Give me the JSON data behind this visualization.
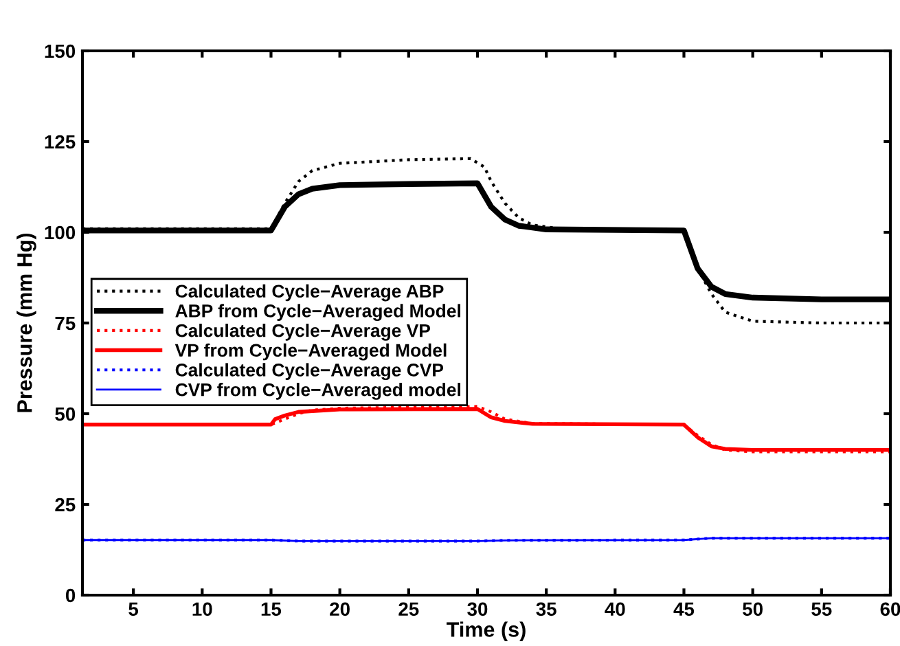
{
  "chart_data": {
    "type": "line",
    "xlabel": "Time (s)",
    "ylabel": "Pressure (mm Hg)",
    "xlim": [
      1.3,
      60
    ],
    "ylim": [
      0,
      150
    ],
    "xticks": [
      5,
      10,
      15,
      20,
      25,
      30,
      35,
      40,
      45,
      50,
      55,
      60
    ],
    "yticks": [
      0,
      25,
      50,
      75,
      100,
      125,
      150
    ],
    "grid": false,
    "legend": "left",
    "series": [
      {
        "name": "Calculated Cycle−Average ABP",
        "color": "#000000",
        "line_style": "dotted",
        "x": [
          1.3,
          15,
          16,
          17,
          18,
          20,
          25,
          29.5,
          30.5,
          31,
          32,
          33,
          34,
          36,
          45,
          46,
          47,
          48,
          50,
          55,
          60
        ],
        "values": [
          101,
          101,
          108,
          114,
          117,
          119,
          120,
          120.3,
          118,
          114,
          108,
          104,
          102,
          101,
          100.5,
          90,
          83,
          78,
          75.5,
          75,
          75
        ]
      },
      {
        "name": "ABP from Cycle−Averaged Model",
        "color": "#000000",
        "line_style": "solid",
        "x": [
          1.3,
          15,
          16,
          17,
          18,
          20,
          25,
          30,
          31,
          32,
          33,
          35,
          45,
          46,
          47,
          48,
          50,
          55,
          60
        ],
        "values": [
          100.5,
          100.5,
          107,
          110.5,
          112,
          113,
          113.3,
          113.5,
          107,
          103.5,
          101.8,
          100.8,
          100.5,
          90,
          85,
          83,
          82,
          81.5,
          81.5
        ]
      },
      {
        "name": "Calculated Cycle−Average VP",
        "color": "#ff0000",
        "line_style": "dotted",
        "x": [
          1.3,
          15,
          16,
          17,
          18,
          20,
          30,
          31,
          32,
          34,
          45,
          46,
          47,
          48,
          50,
          60
        ],
        "values": [
          47,
          47,
          48.5,
          50,
          51,
          51.5,
          52,
          50.5,
          48.5,
          47.3,
          47,
          44,
          41.5,
          40,
          39.5,
          39.5
        ]
      },
      {
        "name": "VP from Cycle−Averaged Model",
        "color": "#ff0000",
        "line_style": "solid",
        "x": [
          1.3,
          15,
          15.3,
          16,
          17,
          20,
          30,
          31,
          32,
          34,
          45,
          46,
          47,
          48,
          50,
          60
        ],
        "values": [
          47,
          47,
          48.5,
          49.5,
          50.5,
          51.2,
          51.3,
          49,
          48,
          47.2,
          47,
          43.5,
          41,
          40.3,
          40,
          40
        ]
      },
      {
        "name": "Calculated Cycle−Average CVP",
        "color": "#0000ff",
        "line_style": "dotted",
        "x": [
          1.3,
          15,
          17,
          30,
          32,
          45,
          47,
          60
        ],
        "values": [
          15.2,
          15.2,
          14.9,
          14.9,
          15.1,
          15.2,
          15.7,
          15.7
        ]
      },
      {
        "name": "CVP from Cycle−Averaged model",
        "color": "#0000ff",
        "line_style": "solid",
        "x": [
          1.3,
          15,
          17,
          30,
          32,
          45,
          47,
          60
        ],
        "values": [
          15.2,
          15.2,
          14.9,
          14.9,
          15.1,
          15.2,
          15.7,
          15.7
        ]
      }
    ]
  }
}
